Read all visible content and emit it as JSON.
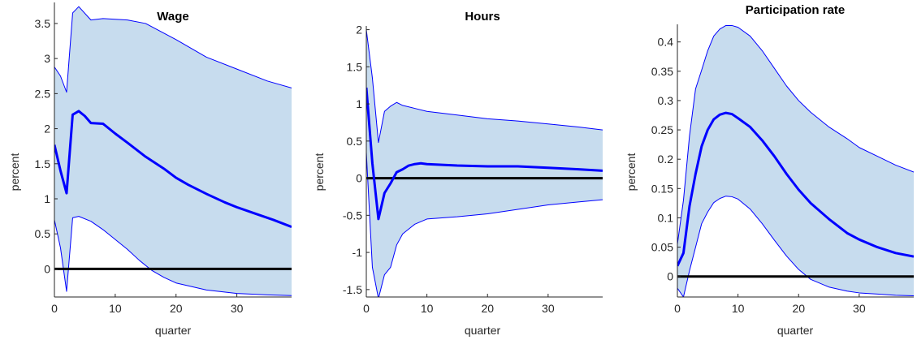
{
  "chart_data": [
    {
      "type": "area",
      "title": "Wage",
      "xlabel": "quarter",
      "ylabel": "percent",
      "xlim": [
        0,
        39
      ],
      "ylim": [
        -0.4,
        3.8
      ],
      "xticks": [
        0,
        10,
        20,
        30
      ],
      "yticks": [
        0,
        0.5,
        1,
        1.5,
        2,
        2.5,
        3,
        3.5
      ],
      "ytick_labels": [
        "0",
        "0.5",
        "1",
        "1.5",
        "2",
        "2.5",
        "3",
        "3.5"
      ],
      "grid": false,
      "colors": {
        "band": "#c7dcee",
        "median": "#0000ff",
        "zero": "#000000"
      },
      "series": [
        {
          "role": "upper",
          "x": [
            0,
            1,
            2,
            3,
            4,
            6,
            8,
            10,
            12,
            15,
            20,
            25,
            30,
            35,
            39
          ],
          "values": [
            2.88,
            2.75,
            2.52,
            3.65,
            3.74,
            3.55,
            3.57,
            3.56,
            3.55,
            3.5,
            3.27,
            3.02,
            2.85,
            2.68,
            2.58
          ]
        },
        {
          "role": "median",
          "x": [
            0,
            1,
            2,
            3,
            4,
            5,
            6,
            8,
            10,
            12,
            15,
            18,
            20,
            22,
            25,
            28,
            30,
            33,
            36,
            39
          ],
          "values": [
            1.77,
            1.4,
            1.08,
            2.2,
            2.25,
            2.18,
            2.08,
            2.07,
            1.93,
            1.8,
            1.6,
            1.43,
            1.3,
            1.2,
            1.07,
            0.95,
            0.88,
            0.79,
            0.7,
            0.6
          ]
        },
        {
          "role": "lower",
          "x": [
            0,
            1,
            2,
            3,
            4,
            6,
            8,
            10,
            12,
            14,
            16,
            18,
            20,
            25,
            30,
            35,
            39
          ],
          "values": [
            0.7,
            0.3,
            -0.32,
            0.73,
            0.75,
            0.68,
            0.56,
            0.42,
            0.28,
            0.12,
            -0.02,
            -0.12,
            -0.2,
            -0.3,
            -0.35,
            -0.37,
            -0.38
          ]
        },
        {
          "role": "zero",
          "x": [
            0,
            39
          ],
          "values": [
            0,
            0
          ]
        }
      ]
    },
    {
      "type": "area",
      "title": "Hours",
      "xlabel": "quarter",
      "ylabel": "percent",
      "xlim": [
        0,
        39
      ],
      "ylim": [
        -1.6,
        2.05
      ],
      "xticks": [
        0,
        10,
        20,
        30
      ],
      "yticks": [
        -1.5,
        -1,
        -0.5,
        0,
        0.5,
        1,
        1.5,
        2
      ],
      "ytick_labels": [
        "-1.5",
        "-1",
        "-0.5",
        "0",
        "0.5",
        "1",
        "1.5",
        "2"
      ],
      "grid": false,
      "colors": {
        "band": "#c7dcee",
        "median": "#0000ff",
        "zero": "#000000"
      },
      "series": [
        {
          "role": "upper",
          "x": [
            0,
            1,
            2,
            3,
            4,
            5,
            6,
            8,
            10,
            15,
            20,
            25,
            30,
            35,
            39
          ],
          "values": [
            2.0,
            1.35,
            0.48,
            0.9,
            0.97,
            1.02,
            0.98,
            0.94,
            0.9,
            0.85,
            0.8,
            0.77,
            0.73,
            0.69,
            0.65
          ]
        },
        {
          "role": "median",
          "x": [
            0,
            1,
            2,
            3,
            4,
            5,
            6,
            7,
            8,
            9,
            10,
            15,
            20,
            25,
            30,
            35,
            39
          ],
          "values": [
            1.22,
            0.2,
            -0.55,
            -0.2,
            -0.07,
            0.08,
            0.12,
            0.17,
            0.19,
            0.2,
            0.19,
            0.17,
            0.16,
            0.16,
            0.14,
            0.12,
            0.1
          ]
        },
        {
          "role": "lower",
          "x": [
            0,
            1,
            2,
            3,
            4,
            5,
            6,
            8,
            10,
            15,
            20,
            25,
            30,
            35,
            39
          ],
          "values": [
            0.35,
            -1.2,
            -1.62,
            -1.3,
            -1.2,
            -0.9,
            -0.75,
            -0.62,
            -0.55,
            -0.52,
            -0.48,
            -0.42,
            -0.36,
            -0.32,
            -0.29
          ]
        },
        {
          "role": "zero",
          "x": [
            0,
            39
          ],
          "values": [
            0,
            0
          ]
        }
      ]
    },
    {
      "type": "area",
      "title": "Participation rate",
      "xlabel": "quarter",
      "ylabel": "percent",
      "xlim": [
        0,
        39
      ],
      "ylim": [
        -0.035,
        0.43
      ],
      "xticks": [
        0,
        10,
        20,
        30
      ],
      "yticks": [
        0,
        0.05,
        0.1,
        0.15,
        0.2,
        0.25,
        0.3,
        0.35,
        0.4
      ],
      "ytick_labels": [
        "0",
        "0.05",
        "0.1",
        "0.15",
        "0.2",
        "0.25",
        "0.3",
        "0.35",
        "0.4"
      ],
      "grid": false,
      "colors": {
        "band": "#c7dcee",
        "median": "#0000ff",
        "zero": "#000000"
      },
      "series": [
        {
          "role": "upper",
          "x": [
            0,
            1,
            2,
            3,
            4,
            5,
            6,
            7,
            8,
            9,
            10,
            12,
            14,
            16,
            18,
            20,
            22,
            25,
            28,
            30,
            33,
            36,
            39
          ],
          "values": [
            0.055,
            0.13,
            0.24,
            0.32,
            0.352,
            0.385,
            0.41,
            0.422,
            0.428,
            0.428,
            0.425,
            0.41,
            0.385,
            0.355,
            0.325,
            0.3,
            0.28,
            0.255,
            0.235,
            0.22,
            0.205,
            0.19,
            0.178
          ]
        },
        {
          "role": "median",
          "x": [
            0,
            1,
            2,
            3,
            4,
            5,
            6,
            7,
            8,
            9,
            10,
            12,
            14,
            16,
            18,
            20,
            22,
            25,
            28,
            30,
            33,
            36,
            39
          ],
          "values": [
            0.018,
            0.04,
            0.12,
            0.175,
            0.222,
            0.25,
            0.268,
            0.276,
            0.279,
            0.277,
            0.27,
            0.255,
            0.232,
            0.205,
            0.175,
            0.148,
            0.125,
            0.098,
            0.074,
            0.063,
            0.05,
            0.04,
            0.034
          ]
        },
        {
          "role": "lower",
          "x": [
            0,
            1,
            2,
            3,
            4,
            5,
            6,
            7,
            8,
            9,
            10,
            12,
            14,
            16,
            18,
            20,
            22,
            25,
            28,
            30,
            33,
            36,
            39
          ],
          "values": [
            -0.02,
            -0.035,
            0.01,
            0.05,
            0.09,
            0.11,
            0.126,
            0.133,
            0.137,
            0.136,
            0.132,
            0.115,
            0.09,
            0.062,
            0.035,
            0.012,
            -0.005,
            -0.018,
            -0.025,
            -0.028,
            -0.03,
            -0.032,
            -0.033
          ]
        },
        {
          "role": "zero",
          "x": [
            0,
            39
          ],
          "values": [
            0,
            0
          ]
        }
      ]
    }
  ]
}
